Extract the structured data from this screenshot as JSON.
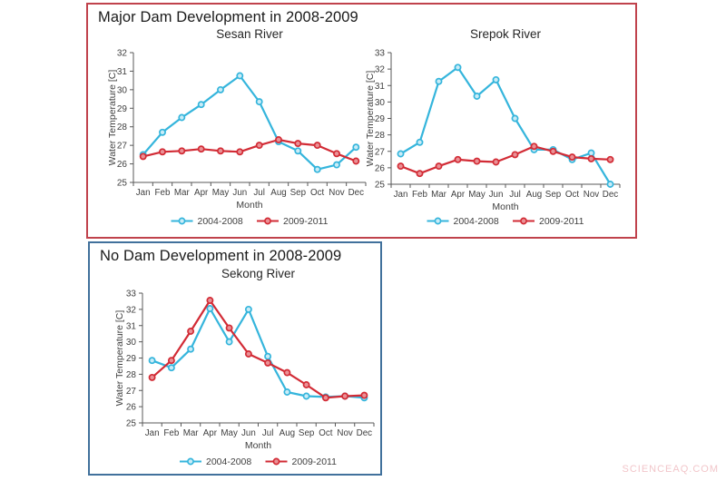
{
  "style": {
    "axis_color": "#595959",
    "tick_text_color": "#404040",
    "chart_title_color": "#262626",
    "panel_title_color": "#1a1a1a",
    "background": "#ffffff",
    "watermark_color": "#f2c6ca",
    "blue_series_color": "#35b5dc",
    "red_series_color": "#d22b35"
  },
  "panels": [
    {
      "title": "Major Dam Development in 2008-2009",
      "border_color": "#c0424c"
    },
    {
      "title": "No Dam Development in 2008-2009",
      "border_color": "#41719c"
    }
  ],
  "watermark": "SCIENCEAQ.COM",
  "chart_data": [
    {
      "type": "line",
      "title": "Sesan River",
      "xlabel": "Month",
      "ylabel": "Water Temperature [C]",
      "ylim": [
        25,
        32
      ],
      "ytick_step": 1,
      "grid": false,
      "legend_position": "bottom",
      "categories": [
        "Jan",
        "Feb",
        "Mar",
        "Apr",
        "May",
        "Jun",
        "Jul",
        "Aug",
        "Sep",
        "Oct",
        "Nov",
        "Dec"
      ],
      "series": [
        {
          "name": "2004-2008",
          "color": "#35b5dc",
          "marker_fill": "#c9ecf7",
          "values": [
            26.5,
            27.7,
            28.5,
            29.2,
            30.0,
            30.75,
            29.35,
            27.2,
            26.7,
            25.7,
            25.95,
            26.9
          ]
        },
        {
          "name": "2009-2011",
          "color": "#d22b35",
          "marker_fill": "#ea9196",
          "values": [
            26.4,
            26.65,
            26.7,
            26.8,
            26.7,
            26.65,
            27.0,
            27.3,
            27.1,
            27.0,
            26.55,
            26.15
          ]
        }
      ]
    },
    {
      "type": "line",
      "title": "Srepok River",
      "xlabel": "Month",
      "ylabel": "Water Temperature [C]",
      "ylim": [
        25,
        33
      ],
      "ytick_step": 1,
      "grid": false,
      "legend_position": "bottom",
      "categories": [
        "Jan",
        "Feb",
        "Mar",
        "Apr",
        "May",
        "Jun",
        "Jul",
        "Aug",
        "Sep",
        "Oct",
        "Nov",
        "Dec"
      ],
      "series": [
        {
          "name": "2004-2008",
          "color": "#35b5dc",
          "marker_fill": "#c9ecf7",
          "values": [
            26.85,
            27.55,
            31.25,
            32.1,
            30.35,
            31.35,
            29.0,
            27.1,
            27.1,
            26.5,
            26.9,
            25.0
          ]
        },
        {
          "name": "2009-2011",
          "color": "#d22b35",
          "marker_fill": "#ea9196",
          "values": [
            26.1,
            25.65,
            26.1,
            26.5,
            26.4,
            26.35,
            26.8,
            27.3,
            27.0,
            26.65,
            26.55,
            26.5
          ]
        }
      ]
    },
    {
      "type": "line",
      "title": "Sekong River",
      "xlabel": "Month",
      "ylabel": "Water Temperature [C]",
      "ylim": [
        25,
        33
      ],
      "ytick_step": 1,
      "grid": false,
      "legend_position": "bottom",
      "categories": [
        "Jan",
        "Feb",
        "Mar",
        "Apr",
        "May",
        "Jun",
        "Jul",
        "Aug",
        "Sep",
        "Oct",
        "Nov",
        "Dec"
      ],
      "series": [
        {
          "name": "2004-2008",
          "color": "#35b5dc",
          "marker_fill": "#c9ecf7",
          "values": [
            28.85,
            28.4,
            29.55,
            32.05,
            30.0,
            32.0,
            29.1,
            26.9,
            26.65,
            26.6,
            26.65,
            26.55
          ]
        },
        {
          "name": "2009-2011",
          "color": "#d22b35",
          "marker_fill": "#ea9196",
          "values": [
            27.8,
            28.85,
            30.65,
            32.55,
            30.85,
            29.25,
            28.7,
            28.1,
            27.35,
            26.55,
            26.65,
            26.7
          ]
        }
      ]
    }
  ]
}
